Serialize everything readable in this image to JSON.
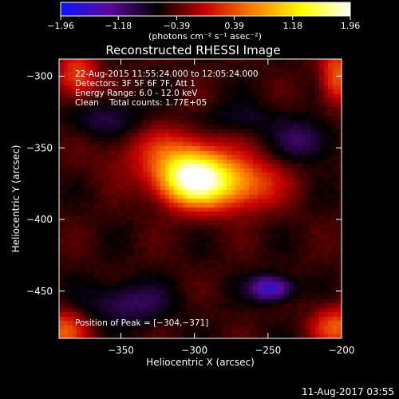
{
  "chart_data": {
    "type": "heatmap",
    "title": "Reconstructed RHESSI Image",
    "xlabel": "Heliocentric X (arcsec)",
    "ylabel": "Heliocentric Y (arcsec)",
    "xlim": [
      -392,
      -200
    ],
    "ylim": [
      -483,
      -288
    ],
    "xticks": [
      -350,
      -300,
      -250,
      -200
    ],
    "xtick_labels": [
      "−350",
      "−300",
      "−250",
      "−200"
    ],
    "yticks": [
      -300,
      -350,
      -400,
      -450
    ],
    "ytick_labels": [
      "−300",
      "−350",
      "−400",
      "−450"
    ],
    "colorbar": {
      "min": -1.96,
      "max": 1.96,
      "ticks": [
        -1.96,
        -1.18,
        -0.39,
        0.39,
        1.18,
        1.96
      ],
      "tick_labels": [
        "−1.96",
        "−1.18",
        "−0.39",
        "0.39",
        "1.18",
        "1.96"
      ],
      "unit_label": "(photons cm⁻² s⁻¹ asec⁻²)",
      "colors": [
        "#0a14ff",
        "#5a0a9a",
        "#000000",
        "#c80000",
        "#ff8000",
        "#ffff00",
        "#ffffff"
      ]
    },
    "annotations": [
      "22-Aug-2015 11:55:24.000 to 12:05:24.000",
      "Detectors: 3F 5F 6F 7F, Att 1",
      "Energy Range: 6.0 - 12.0 keV",
      "Clean    Total counts: 1.77E+05"
    ],
    "peak_label": "Position of Peak = [−304,−371]",
    "peak": [
      -304,
      -371
    ],
    "sources": [
      {
        "x": -303,
        "y": -371,
        "amp": 1.96,
        "sx": 16,
        "sy": 13
      },
      {
        "x": -275,
        "y": -375,
        "amp": 1.25,
        "sx": 22,
        "sy": 13
      },
      {
        "x": -320,
        "y": -353,
        "amp": 0.55,
        "sx": 28,
        "sy": 14
      },
      {
        "x": -380,
        "y": -300,
        "amp": 0.85,
        "sx": 10,
        "sy": 12
      },
      {
        "x": -203,
        "y": -300,
        "amp": 0.95,
        "sx": 8,
        "sy": 14
      },
      {
        "x": -203,
        "y": -475,
        "amp": 0.9,
        "sx": 12,
        "sy": 10
      },
      {
        "x": -390,
        "y": -478,
        "amp": 0.9,
        "sx": 12,
        "sy": 10
      },
      {
        "x": -248,
        "y": -448,
        "amp": -1.2,
        "sx": 10,
        "sy": 6
      },
      {
        "x": -345,
        "y": -458,
        "amp": -0.55,
        "sx": 20,
        "sy": 10
      },
      {
        "x": -225,
        "y": -345,
        "amp": -0.55,
        "sx": 14,
        "sy": 10
      },
      {
        "x": -360,
        "y": -330,
        "amp": -0.45,
        "sx": 18,
        "sy": 10
      },
      {
        "x": -270,
        "y": -330,
        "amp": -0.3,
        "sx": 20,
        "sy": 8
      }
    ],
    "background_level": -0.5
  },
  "footer": {
    "timestamp": "11-Aug-2017 03:55"
  }
}
